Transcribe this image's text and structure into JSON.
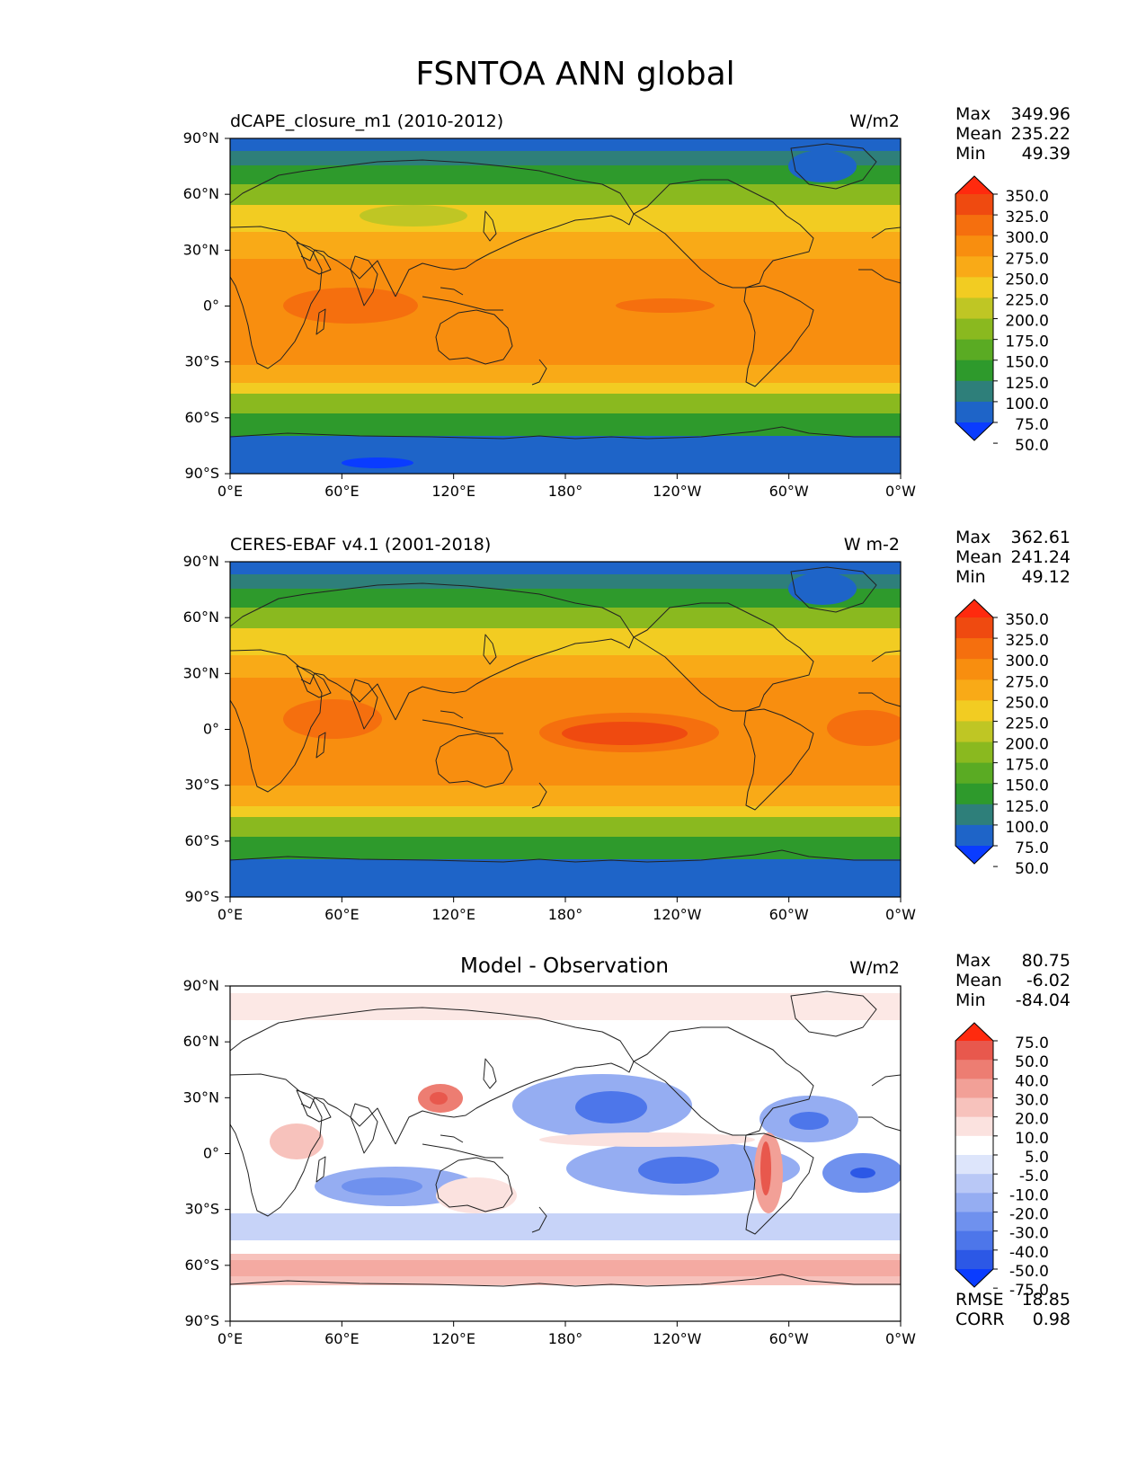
{
  "figure": {
    "title": "FSNTOA ANN global"
  },
  "axes": {
    "lat_ticks": [
      "90°N",
      "60°N",
      "30°N",
      "0°",
      "30°S",
      "60°S",
      "90°S"
    ],
    "lon_ticks": [
      "0°E",
      "60°E",
      "120°E",
      "180°",
      "120°W",
      "60°W",
      "0°W"
    ]
  },
  "colors": {
    "abs_scale": [
      "#0a3cff",
      "#1e64c8",
      "#2e7f7a",
      "#2e9a2c",
      "#5aab23",
      "#8ab91f",
      "#bfc624",
      "#f2cc22",
      "#f9aa17",
      "#f88e0f",
      "#f56f0e",
      "#ef4a10",
      "#ff2a0e"
    ],
    "diff_scale": [
      "#0a3cff",
      "#2c58e6",
      "#4d76ea",
      "#6f91ee",
      "#95adf2",
      "#b9c8f6",
      "#dde5fb",
      "#ffffff",
      "#fbe2df",
      "#f7c2bc",
      "#f2a097",
      "#ed7d72",
      "#e8584d",
      "#ff2a0e"
    ],
    "map_abs": [
      "#1e64c8",
      "#2e7f7a",
      "#2e9a2c",
      "#8ab91f",
      "#f2cc22",
      "#f9aa17",
      "#f88e0f",
      "#f56f0e"
    ]
  },
  "panels": [
    {
      "name": "dCAPE_closure_m1 (2010-2012)",
      "units": "W/m2",
      "stats": [
        {
          "label": "Max",
          "value": "349.96"
        },
        {
          "label": "Mean",
          "value": "235.22"
        },
        {
          "label": "Min",
          "value": "49.39"
        }
      ],
      "colorbar_labels": [
        "350.0",
        "325.0",
        "300.0",
        "275.0",
        "250.0",
        "225.0",
        "200.0",
        "175.0",
        "150.0",
        "125.0",
        "100.0",
        "75.0",
        "50.0"
      ]
    },
    {
      "name": "CERES-EBAF v4.1 (2001-2018)",
      "units": "W m-2",
      "stats": [
        {
          "label": "Max",
          "value": "362.61"
        },
        {
          "label": "Mean",
          "value": "241.24"
        },
        {
          "label": "Min",
          "value": "49.12"
        }
      ],
      "colorbar_labels": [
        "350.0",
        "325.0",
        "300.0",
        "275.0",
        "250.0",
        "225.0",
        "200.0",
        "175.0",
        "150.0",
        "125.0",
        "100.0",
        "75.0",
        "50.0"
      ]
    },
    {
      "name": "Model - Observation",
      "units": "W/m2",
      "stats": [
        {
          "label": "Max",
          "value": "80.75"
        },
        {
          "label": "Mean",
          "value": "-6.02"
        },
        {
          "label": "Min",
          "value": "-84.04"
        }
      ],
      "colorbar_labels": [
        "75.0",
        "50.0",
        "40.0",
        "30.0",
        "20.0",
        "10.0",
        "5.0",
        "-5.0",
        "-10.0",
        "-20.0",
        "-30.0",
        "-40.0",
        "-50.0",
        "-75.0"
      ],
      "extra_stats": [
        {
          "label": "RMSE",
          "value": "18.85"
        },
        {
          "label": "CORR",
          "value": "0.98"
        }
      ]
    }
  ]
}
